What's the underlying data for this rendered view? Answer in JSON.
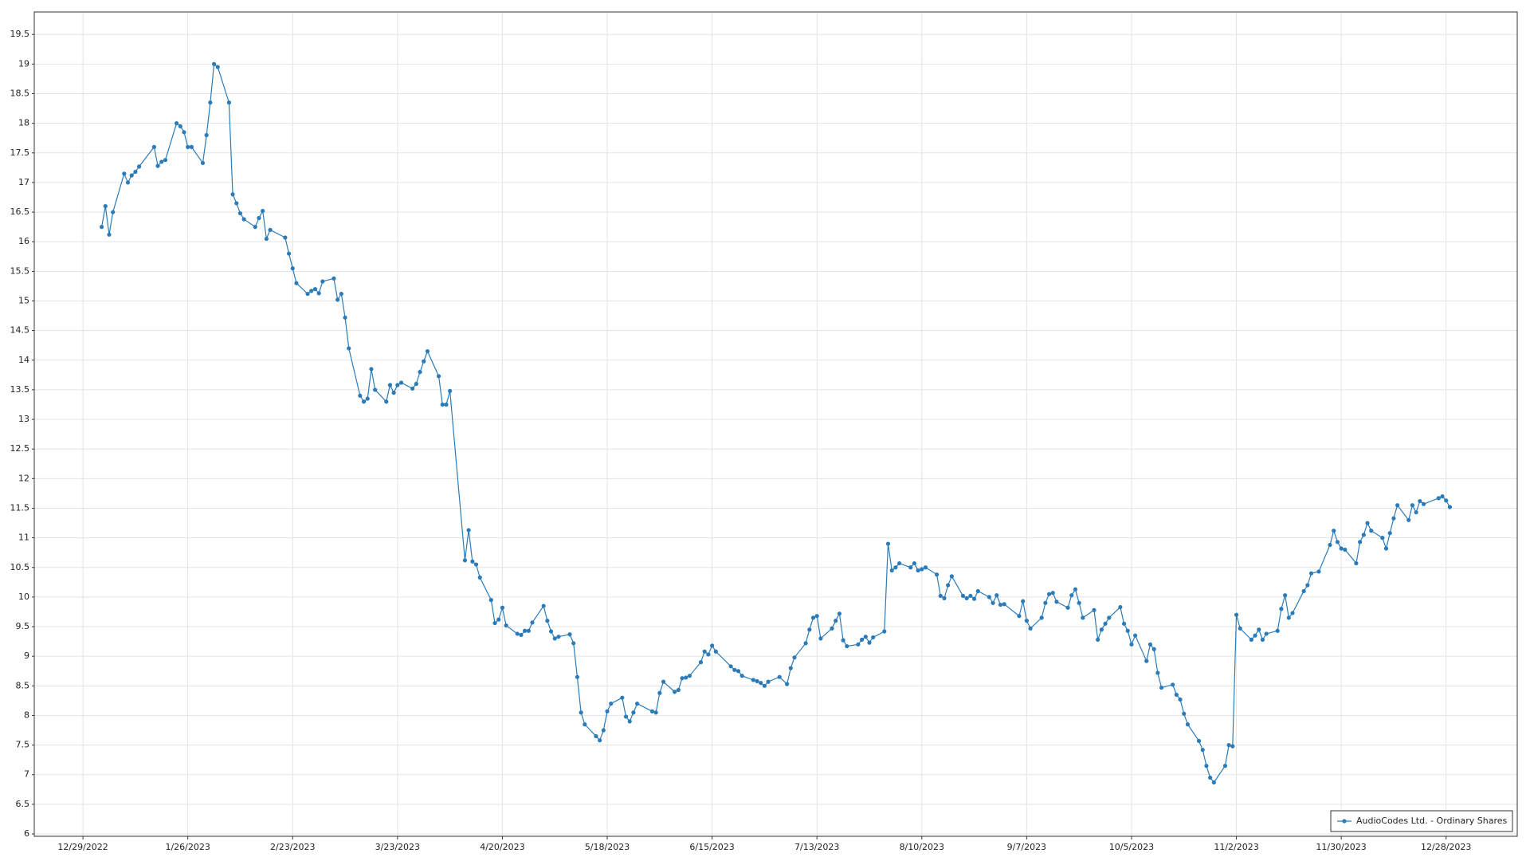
{
  "chart_data": {
    "type": "line",
    "x": [
      "1/3/2023",
      "1/4/2023",
      "1/5/2023",
      "1/6/2023",
      "1/9/2023",
      "1/10/2023",
      "1/11/2023",
      "1/12/2023",
      "1/13/2023",
      "1/17/2023",
      "1/18/2023",
      "1/19/2023",
      "1/20/2023",
      "1/23/2023",
      "1/24/2023",
      "1/25/2023",
      "1/26/2023",
      "1/27/2023",
      "1/30/2023",
      "1/31/2023",
      "2/1/2023",
      "2/2/2023",
      "2/3/2023",
      "2/6/2023",
      "2/7/2023",
      "2/8/2023",
      "2/9/2023",
      "2/10/2023",
      "2/13/2023",
      "2/14/2023",
      "2/15/2023",
      "2/16/2023",
      "2/17/2023",
      "2/21/2023",
      "2/22/2023",
      "2/23/2023",
      "2/24/2023",
      "2/27/2023",
      "2/28/2023",
      "3/1/2023",
      "3/2/2023",
      "3/3/2023",
      "3/6/2023",
      "3/7/2023",
      "3/8/2023",
      "3/9/2023",
      "3/10/2023",
      "3/13/2023",
      "3/14/2023",
      "3/15/2023",
      "3/16/2023",
      "3/17/2023",
      "3/20/2023",
      "3/21/2023",
      "3/22/2023",
      "3/23/2023",
      "3/24/2023",
      "3/27/2023",
      "3/28/2023",
      "3/29/2023",
      "3/30/2023",
      "3/31/2023",
      "4/3/2023",
      "4/4/2023",
      "4/5/2023",
      "4/6/2023",
      "4/10/2023",
      "4/11/2023",
      "4/12/2023",
      "4/13/2023",
      "4/14/2023",
      "4/17/2023",
      "4/18/2023",
      "4/19/2023",
      "4/20/2023",
      "4/21/2023",
      "4/24/2023",
      "4/25/2023",
      "4/26/2023",
      "4/27/2023",
      "4/28/2023",
      "5/1/2023",
      "5/2/2023",
      "5/3/2023",
      "5/4/2023",
      "5/5/2023",
      "5/8/2023",
      "5/9/2023",
      "5/10/2023",
      "5/11/2023",
      "5/12/2023",
      "5/15/2023",
      "5/16/2023",
      "5/17/2023",
      "5/18/2023",
      "5/19/2023",
      "5/22/2023",
      "5/23/2023",
      "5/24/2023",
      "5/25/2023",
      "5/26/2023",
      "5/30/2023",
      "5/31/2023",
      "6/1/2023",
      "6/2/2023",
      "6/5/2023",
      "6/6/2023",
      "6/7/2023",
      "6/8/2023",
      "6/9/2023",
      "6/12/2023",
      "6/13/2023",
      "6/14/2023",
      "6/15/2023",
      "6/16/2023",
      "6/20/2023",
      "6/21/2023",
      "6/22/2023",
      "6/23/2023",
      "6/26/2023",
      "6/27/2023",
      "6/28/2023",
      "6/29/2023",
      "6/30/2023",
      "7/3/2023",
      "7/5/2023",
      "7/6/2023",
      "7/7/2023",
      "7/10/2023",
      "7/11/2023",
      "7/12/2023",
      "7/13/2023",
      "7/14/2023",
      "7/17/2023",
      "7/18/2023",
      "7/19/2023",
      "7/20/2023",
      "7/21/2023",
      "7/24/2023",
      "7/25/2023",
      "7/26/2023",
      "7/27/2023",
      "7/28/2023",
      "7/31/2023",
      "8/1/2023",
      "8/2/2023",
      "8/3/2023",
      "8/4/2023",
      "8/7/2023",
      "8/8/2023",
      "8/9/2023",
      "8/10/2023",
      "8/11/2023",
      "8/14/2023",
      "8/15/2023",
      "8/16/2023",
      "8/17/2023",
      "8/18/2023",
      "8/21/2023",
      "8/22/2023",
      "8/23/2023",
      "8/24/2023",
      "8/25/2023",
      "8/28/2023",
      "8/29/2023",
      "8/30/2023",
      "8/31/2023",
      "9/1/2023",
      "9/5/2023",
      "9/6/2023",
      "9/7/2023",
      "9/8/2023",
      "9/11/2023",
      "9/12/2023",
      "9/13/2023",
      "9/14/2023",
      "9/15/2023",
      "9/18/2023",
      "9/19/2023",
      "9/20/2023",
      "9/21/2023",
      "9/22/2023",
      "9/25/2023",
      "9/26/2023",
      "9/27/2023",
      "9/28/2023",
      "9/29/2023",
      "10/2/2023",
      "10/3/2023",
      "10/4/2023",
      "10/5/2023",
      "10/6/2023",
      "10/9/2023",
      "10/10/2023",
      "10/11/2023",
      "10/12/2023",
      "10/13/2023",
      "10/16/2023",
      "10/17/2023",
      "10/18/2023",
      "10/19/2023",
      "10/20/2023",
      "10/23/2023",
      "10/24/2023",
      "10/25/2023",
      "10/26/2023",
      "10/27/2023",
      "10/30/2023",
      "10/31/2023",
      "11/1/2023",
      "11/2/2023",
      "11/3/2023",
      "11/6/2023",
      "11/7/2023",
      "11/8/2023",
      "11/9/2023",
      "11/10/2023",
      "11/13/2023",
      "11/14/2023",
      "11/15/2023",
      "11/16/2023",
      "11/17/2023",
      "11/20/2023",
      "11/21/2023",
      "11/22/2023",
      "11/24/2023",
      "11/27/2023",
      "11/28/2023",
      "11/29/2023",
      "11/30/2023",
      "12/1/2023",
      "12/4/2023",
      "12/5/2023",
      "12/6/2023",
      "12/7/2023",
      "12/8/2023",
      "12/11/2023",
      "12/12/2023",
      "12/13/2023",
      "12/14/2023",
      "12/15/2023",
      "12/18/2023",
      "12/19/2023",
      "12/20/2023",
      "12/21/2023",
      "12/22/2023",
      "12/26/2023",
      "12/27/2023",
      "12/28/2023",
      "12/29/2023"
    ],
    "series": [
      {
        "name": "AudioCodes Ltd. - Ordinary Shares",
        "color": "#2b7bb9",
        "values": [
          16.25,
          16.6,
          16.12,
          16.5,
          17.15,
          17.0,
          17.12,
          17.18,
          17.27,
          17.6,
          17.28,
          17.35,
          17.38,
          18.0,
          17.95,
          17.85,
          17.6,
          17.6,
          17.33,
          17.8,
          18.35,
          19.0,
          18.95,
          18.35,
          16.8,
          16.65,
          16.48,
          16.38,
          16.25,
          16.4,
          16.52,
          16.05,
          16.2,
          16.07,
          15.8,
          15.55,
          15.3,
          15.12,
          15.17,
          15.2,
          15.13,
          15.33,
          15.38,
          15.02,
          15.12,
          14.72,
          14.2,
          13.4,
          13.3,
          13.35,
          13.85,
          13.5,
          13.3,
          13.58,
          13.45,
          13.58,
          13.62,
          13.52,
          13.6,
          13.8,
          13.98,
          14.15,
          13.73,
          13.25,
          13.25,
          13.48,
          10.62,
          11.13,
          10.6,
          10.55,
          10.33,
          9.95,
          9.56,
          9.62,
          9.82,
          9.52,
          9.38,
          9.36,
          9.43,
          9.43,
          9.57,
          9.85,
          9.6,
          9.42,
          9.3,
          9.33,
          9.37,
          9.22,
          8.65,
          8.05,
          7.85,
          7.65,
          7.58,
          7.75,
          8.07,
          8.2,
          8.3,
          7.98,
          7.9,
          8.05,
          8.2,
          8.07,
          8.05,
          8.38,
          8.57,
          8.4,
          8.43,
          8.63,
          8.64,
          8.67,
          8.9,
          9.08,
          9.03,
          9.18,
          9.08,
          8.83,
          8.77,
          8.75,
          8.67,
          8.6,
          8.58,
          8.55,
          8.5,
          8.57,
          8.65,
          8.53,
          8.8,
          8.98,
          9.22,
          9.45,
          9.65,
          9.68,
          9.3,
          9.47,
          9.6,
          9.72,
          9.27,
          9.17,
          9.2,
          9.28,
          9.33,
          9.23,
          9.32,
          9.42,
          10.9,
          10.45,
          10.5,
          10.57,
          10.5,
          10.57,
          10.45,
          10.47,
          10.5,
          10.38,
          10.02,
          9.98,
          10.2,
          10.35,
          10.02,
          9.98,
          10.02,
          9.97,
          10.1,
          10.0,
          9.9,
          10.03,
          9.87,
          9.88,
          9.68,
          9.93,
          9.6,
          9.47,
          9.65,
          9.9,
          10.05,
          10.07,
          9.92,
          9.82,
          10.03,
          10.13,
          9.9,
          9.65,
          9.78,
          9.28,
          9.45,
          9.55,
          9.65,
          9.83,
          9.55,
          9.43,
          9.2,
          9.35,
          8.92,
          9.2,
          9.12,
          8.72,
          8.47,
          8.52,
          8.35,
          8.27,
          8.03,
          7.85,
          7.57,
          7.42,
          7.15,
          6.95,
          6.87,
          7.15,
          7.5,
          7.48,
          9.7,
          9.47,
          9.28,
          9.35,
          9.45,
          9.28,
          9.38,
          9.43,
          9.8,
          10.03,
          9.65,
          9.73,
          10.1,
          10.2,
          10.4,
          10.43,
          10.88,
          11.12,
          10.93,
          10.82,
          10.8,
          10.57,
          10.93,
          11.05,
          11.25,
          11.12,
          11.0,
          10.82,
          11.08,
          11.33,
          11.55,
          11.3,
          11.55,
          11.43,
          11.62,
          11.57,
          11.67,
          11.7,
          11.63,
          11.52
        ]
      }
    ],
    "xlim": [
      "12/16/2022",
      "1/16/2024"
    ],
    "xticks": [
      "12/29/2022",
      "1/26/2023",
      "2/23/2023",
      "3/23/2023",
      "4/20/2023",
      "5/18/2023",
      "6/15/2023",
      "7/13/2023",
      "8/10/2023",
      "9/7/2023",
      "10/5/2023",
      "11/2/2023",
      "11/30/2023",
      "12/28/2023"
    ],
    "ylim": [
      5.96,
      19.88
    ],
    "yticks": [
      6,
      6.5,
      7,
      7.5,
      8,
      8.5,
      9,
      9.5,
      10,
      10.5,
      11,
      11.5,
      12,
      12.5,
      13,
      13.5,
      14,
      14.5,
      15,
      15.5,
      16,
      16.5,
      17,
      17.5,
      18,
      18.5,
      19,
      19.5
    ],
    "grid": true,
    "markers": true,
    "legend": "lower right"
  }
}
